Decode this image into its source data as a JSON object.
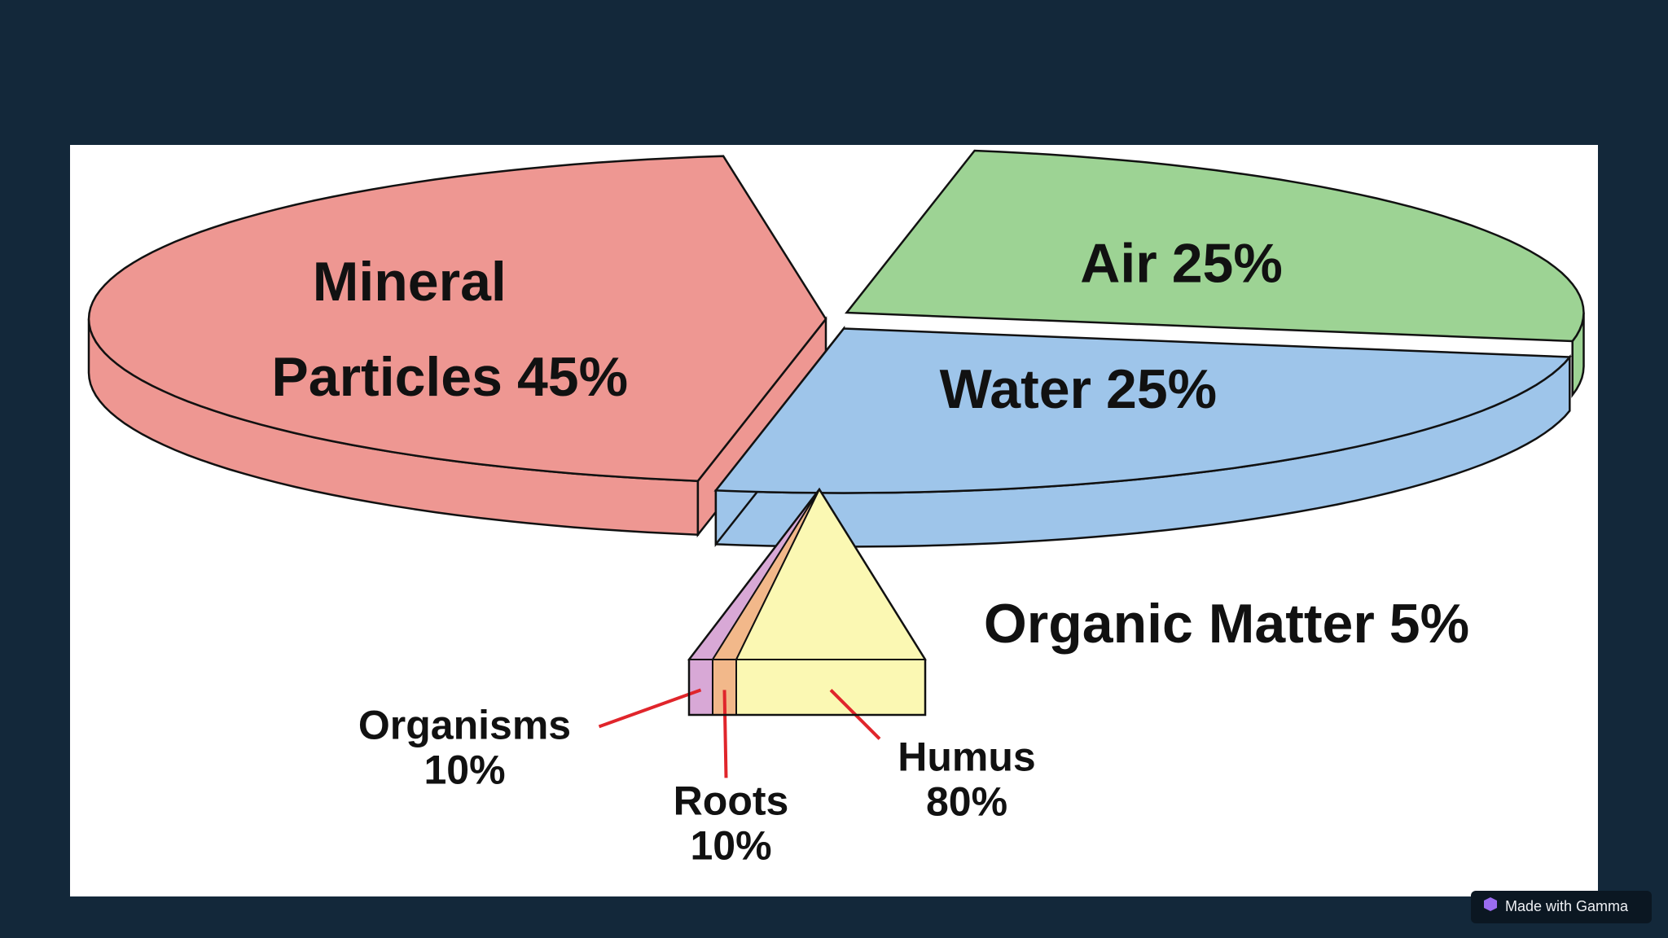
{
  "chart_data": [
    {
      "type": "pie",
      "categories": [
        "Air",
        "Water",
        "Mineral Particles",
        "Organic Matter"
      ],
      "values": [
        25,
        25,
        45,
        5
      ],
      "value_labels": [
        "25%",
        "25%",
        "45%",
        "5%"
      ],
      "colors": [
        "#9dd394",
        "#9ec5ea",
        "#ee9792",
        "#f9f6b0"
      ]
    },
    {
      "type": "stacked-bar",
      "categories": [
        "Organisms",
        "Roots",
        "Humus"
      ],
      "values": [
        10,
        10,
        80
      ],
      "value_labels": [
        "10%",
        "10%",
        "80%"
      ],
      "colors": [
        "#d8a8d6",
        "#f2b88a",
        "#fbf8b3"
      ]
    }
  ],
  "badge": "Made with Gamma"
}
